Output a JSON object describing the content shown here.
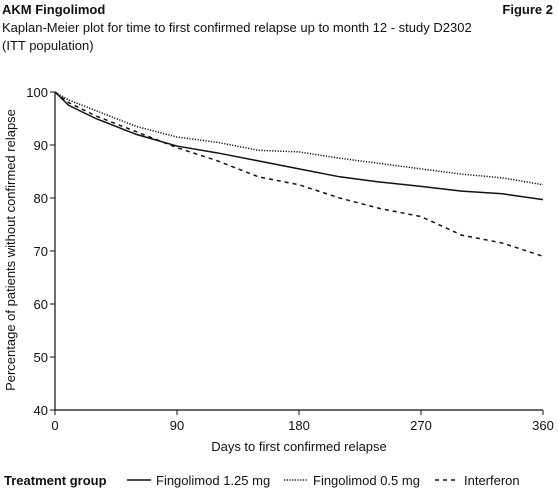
{
  "chart_data": {
    "type": "line",
    "header": "AKM Fingolimod",
    "figure_label": "Figure 2",
    "title": "Kaplan-Meier plot for time to first confirmed relapse up to month 12 - study D2302",
    "subtitle": "(ITT population)",
    "x_label": "Days to first confirmed relapse",
    "y_label": "Percentage of patients without confirmed relapse",
    "legend_title": "Treatment group",
    "x": [
      0,
      10,
      30,
      60,
      90,
      120,
      150,
      180,
      210,
      240,
      270,
      300,
      330,
      360
    ],
    "series": [
      {
        "name": "Fingolimod 1.25 mg",
        "color": "#111111",
        "dash": "none",
        "values": [
          100,
          97.5,
          95,
          92,
          89.8,
          88.5,
          87,
          85.5,
          84,
          83,
          82.2,
          81.3,
          80.8,
          79.7
        ]
      },
      {
        "name": "Fingolimod 0.5 mg",
        "color": "#111111",
        "dash": "1.2 1.5",
        "values": [
          100,
          98.5,
          96.5,
          93.5,
          91.5,
          90.5,
          89,
          88.7,
          87.5,
          86.5,
          85.5,
          84.5,
          83.8,
          82.5
        ]
      },
      {
        "name": "Interferon",
        "color": "#111111",
        "dash": "4 4",
        "values": [
          100,
          98,
          95.5,
          92.5,
          89.5,
          87,
          84,
          82.5,
          80,
          78,
          76.5,
          73,
          71.5,
          69
        ]
      }
    ],
    "xlim": [
      0,
      360
    ],
    "xticks": [
      0,
      90,
      180,
      270,
      360
    ],
    "ylim": [
      40,
      100
    ],
    "yticks": [
      40,
      50,
      60,
      70,
      80,
      90,
      100
    ]
  }
}
